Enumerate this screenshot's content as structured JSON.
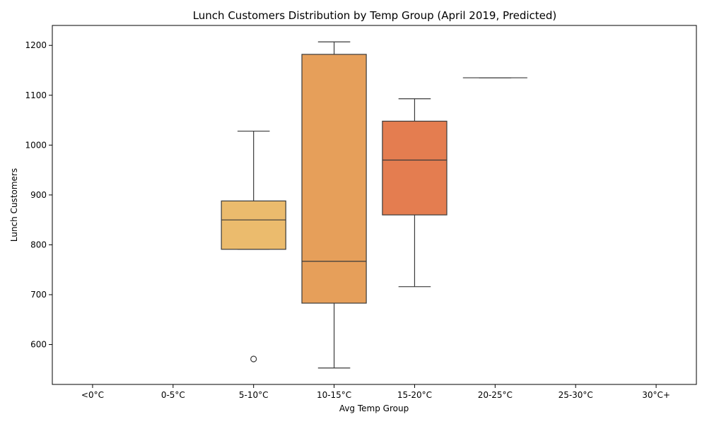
{
  "chart_data": {
    "type": "boxplot",
    "title": "Lunch Customers Distribution by Temp Group (April 2019, Predicted)",
    "xlabel": "Avg Temp Group",
    "ylabel": "Lunch Customers",
    "ylim": [
      520,
      1240
    ],
    "yticks": [
      600,
      700,
      800,
      900,
      1000,
      1100,
      1200
    ],
    "grid": false,
    "categories": [
      "<0°C",
      "0-5°C",
      "5-10°C",
      "10-15°C",
      "15-20°C",
      "20-25°C",
      "25-30°C",
      "30°C+"
    ],
    "boxes": [
      {
        "category": "5-10°C",
        "whisker_low": 791,
        "q1": 791,
        "median": 850,
        "q3": 888,
        "whisker_high": 1028,
        "outliers": [
          571
        ],
        "color": "#ebbb6d"
      },
      {
        "category": "10-15°C",
        "whisker_low": 553,
        "q1": 683,
        "median": 767,
        "q3": 1182,
        "whisker_high": 1207,
        "outliers": [],
        "color": "#e69f5a"
      },
      {
        "category": "15-20°C",
        "whisker_low": 716,
        "q1": 860,
        "median": 970,
        "q3": 1048,
        "whisker_high": 1093,
        "outliers": [],
        "color": "#e47d50"
      },
      {
        "category": "20-25°C",
        "whisker_low": 1135,
        "q1": 1135,
        "median": 1135,
        "q3": 1135,
        "whisker_high": 1135,
        "outliers": [],
        "color": "#df5d47"
      }
    ]
  }
}
